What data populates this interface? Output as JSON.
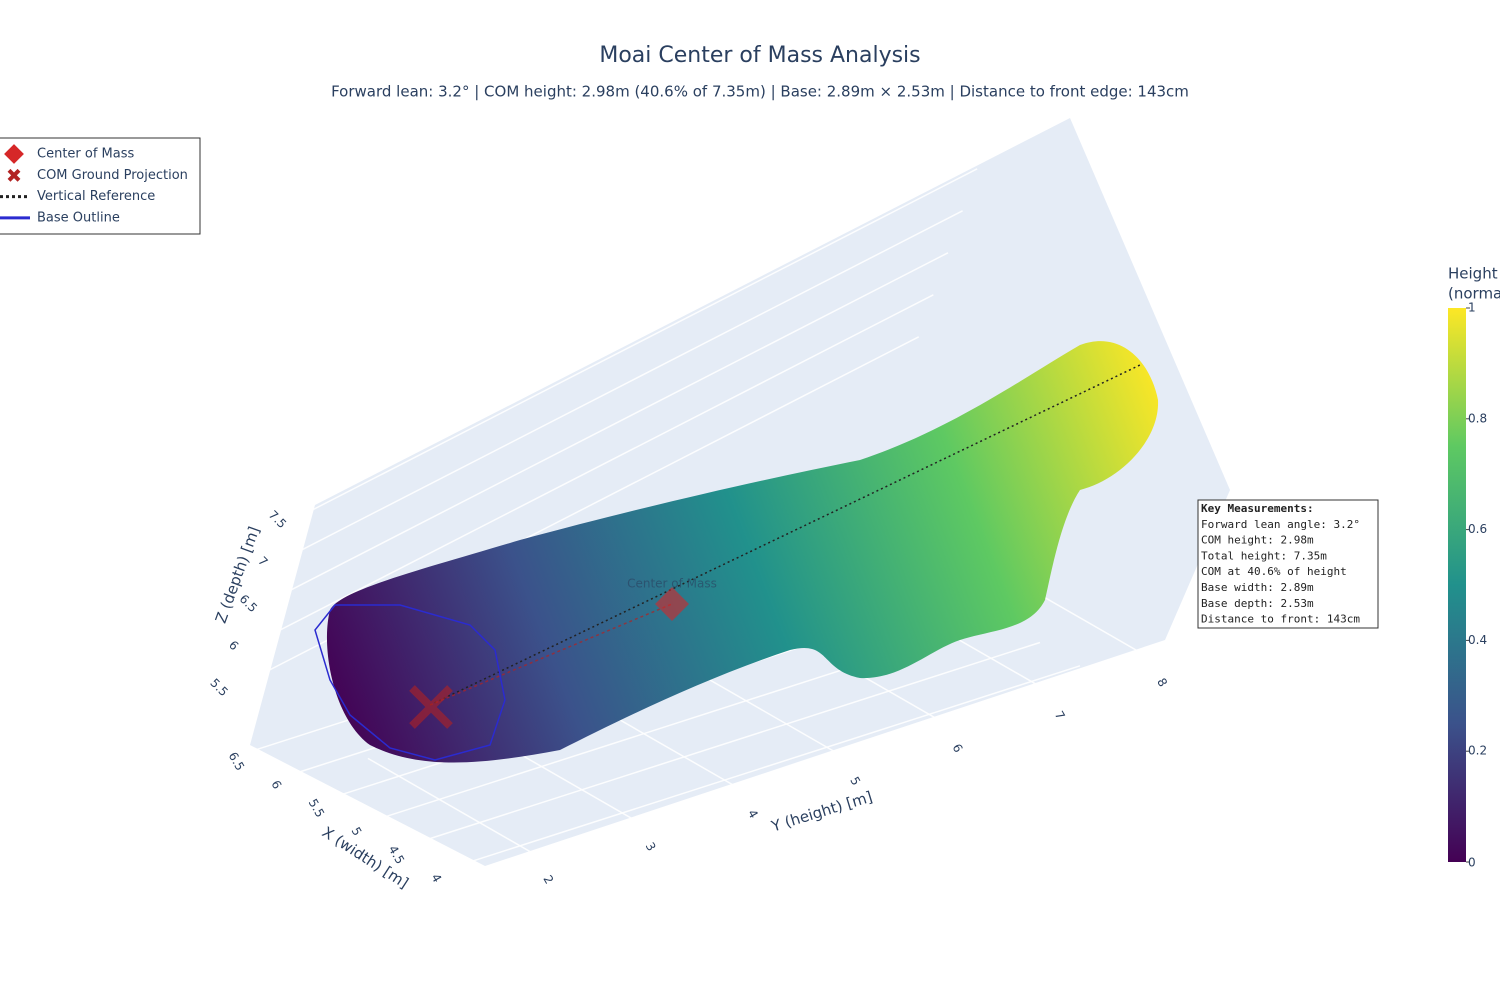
{
  "chart_data": {
    "type": "scatter3d",
    "title": "Moai Center of Mass Analysis",
    "subtitle": "Forward lean: 3.2° | COM height: 2.98m (40.6% of 7.35m) | Base: 2.89m × 2.53m | Distance to front edge: 143cm",
    "series": [
      {
        "name": "Center of Mass",
        "color": "#d62728",
        "marker": "diamond"
      },
      {
        "name": "COM Ground Projection",
        "color": "#b22222",
        "marker": "x"
      },
      {
        "name": "Vertical Reference",
        "color": "#222222",
        "marker": "dot-line"
      },
      {
        "name": "Base Outline",
        "color": "#2b2bd0",
        "marker": "line"
      }
    ],
    "point_label": "Center of Mass",
    "xaxis_title": "X (width) [m]",
    "yaxis_title": "Y (height) [m]",
    "zaxis_title": "Z (depth) [m]",
    "xlim": [
      6.6,
      3.9
    ],
    "xticks": [
      6.5,
      6,
      5.5,
      5,
      4.5,
      4
    ],
    "ylim": [
      1.6,
      8.6
    ],
    "yticks": [
      2,
      3,
      4,
      5,
      6,
      7,
      8
    ],
    "zlim": [
      5.2,
      7.7
    ],
    "zticks": [
      5.5,
      6,
      6.5,
      7,
      7.5
    ],
    "colorbar": {
      "title": [
        "Height",
        "(norma"
      ],
      "clim": [
        0,
        1
      ],
      "ticks": [
        0,
        0.2,
        0.4,
        0.6,
        0.8,
        1
      ]
    },
    "annotation": [
      "Key Measurements:",
      "Forward lean angle: 3.2°",
      "COM height: 2.98m",
      "Total height: 7.35m",
      "COM at 40.6% of height",
      "Base width: 2.89m",
      "Base depth: 2.53m",
      "Distance to front: 143cm"
    ]
  }
}
